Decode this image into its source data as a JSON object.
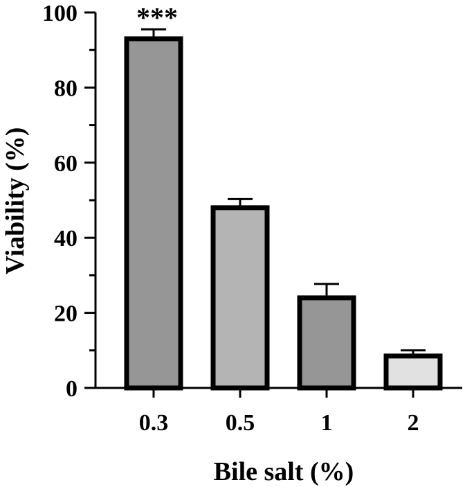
{
  "chart_data": {
    "type": "bar",
    "title": "",
    "xlabel": "Bile salt (%)",
    "ylabel": "Viability (%)",
    "ylim": [
      0,
      100
    ],
    "yticks": [
      0,
      20,
      40,
      60,
      80,
      100
    ],
    "grid": false,
    "categories": [
      "0.3",
      "0.5",
      "1",
      "2"
    ],
    "values": [
      93,
      48,
      24,
      8.5
    ],
    "errors": [
      2.5,
      2.3,
      3.7,
      1.5
    ],
    "bar_colors": [
      "#969696",
      "#b4b4b4",
      "#969696",
      "#e1e1e1"
    ],
    "annotations": [
      {
        "category": "0.3",
        "text": "***"
      }
    ]
  }
}
